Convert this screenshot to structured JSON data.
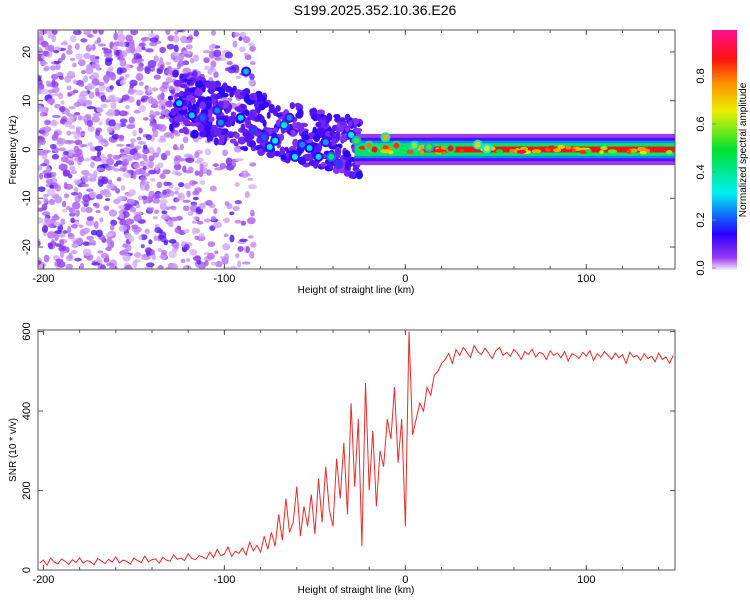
{
  "chart_data": [
    {
      "type": "heatmap",
      "title": "S199.2025.352.10.36.E26",
      "xlabel": "Height of straight line (km)",
      "ylabel": "Frequency (Hz)",
      "xlim": [
        -203,
        149
      ],
      "ylim": [
        -24.5,
        24.5
      ],
      "xticks": [
        -200,
        -100,
        0,
        100
      ],
      "yticks": [
        -20,
        -10,
        0,
        10,
        20
      ],
      "colorbar": {
        "label": "Normalized spectral amplitude",
        "range": [
          0,
          1
        ],
        "ticks": [
          "0.0",
          "0.2",
          "0.4",
          "0.6",
          "0.8"
        ],
        "stops": [
          {
            "v": 0.0,
            "c": "#f4eefc"
          },
          {
            "v": 0.05,
            "c": "#9a3cf0"
          },
          {
            "v": 0.15,
            "c": "#2a00ff"
          },
          {
            "v": 0.22,
            "c": "#1060ff"
          },
          {
            "v": 0.32,
            "c": "#00f0f0"
          },
          {
            "v": 0.5,
            "c": "#00e030"
          },
          {
            "v": 0.66,
            "c": "#e8f000"
          },
          {
            "v": 0.78,
            "c": "#ff9000"
          },
          {
            "v": 0.88,
            "c": "#ff1010"
          },
          {
            "v": 1.0,
            "c": "#ff1090"
          }
        ]
      },
      "ridge": {
        "x_start": -25,
        "x_end": 149,
        "freq": 0,
        "amplitude": 0.88
      },
      "features": [
        [
          -125,
          9.5,
          0.3
        ],
        [
          -118,
          7,
          0.3
        ],
        [
          -112,
          6.5,
          0.22
        ],
        [
          -104,
          8,
          0.25
        ],
        [
          -102,
          5.5,
          0.25
        ],
        [
          -88,
          16,
          0.28
        ],
        [
          -91,
          6.5,
          0.3
        ],
        [
          -84,
          4,
          0.2
        ],
        [
          -78,
          2.5,
          0.22
        ],
        [
          -75,
          0.5,
          0.32
        ],
        [
          -72,
          1.8,
          0.33
        ],
        [
          -67,
          5,
          0.38
        ],
        [
          -64,
          6.5,
          0.25
        ],
        [
          -61,
          -1.5,
          0.32
        ],
        [
          -57,
          1,
          0.25
        ],
        [
          -53,
          0.3,
          0.3
        ],
        [
          -48,
          -1.5,
          0.3
        ],
        [
          -44,
          1.5,
          0.26
        ],
        [
          -41,
          -1.5,
          0.45
        ],
        [
          -37,
          -3,
          0.2
        ],
        [
          -30,
          3,
          0.35
        ],
        [
          -27,
          1.8,
          0.55
        ],
        [
          -20,
          0.8,
          0.8
        ],
        [
          -17,
          0,
          0.88
        ],
        [
          -11,
          2.5,
          0.75
        ],
        [
          -5,
          0.8,
          0.85
        ],
        [
          5,
          0.8,
          0.6
        ],
        [
          13,
          0.5,
          0.55
        ],
        [
          25,
          0.2,
          0.9
        ],
        [
          40,
          1,
          0.7
        ],
        [
          45,
          0.2,
          0.65
        ]
      ]
    },
    {
      "type": "line",
      "xlabel": "Height of straight line (km)",
      "ylabel": "SNR (10 * v/v)",
      "xlim": [
        -203,
        149
      ],
      "ylim": [
        0,
        604
      ],
      "xticks": [
        -200,
        -100,
        0,
        100
      ],
      "yticks": [
        0,
        200,
        400,
        600
      ],
      "color": "#ee2a2a",
      "x_start": -202,
      "x_step": 2,
      "values": [
        18,
        25,
        12,
        30,
        20,
        15,
        28,
        22,
        14,
        26,
        19,
        31,
        17,
        24,
        21,
        13,
        29,
        23,
        16,
        27,
        20,
        33,
        18,
        25,
        22,
        15,
        30,
        24,
        19,
        35,
        21,
        26,
        28,
        17,
        32,
        25,
        22,
        38,
        27,
        30,
        24,
        41,
        29,
        26,
        36,
        33,
        28,
        45,
        31,
        52,
        36,
        40,
        58,
        34,
        47,
        42,
        55,
        38,
        70,
        48,
        62,
        45,
        85,
        52,
        95,
        60,
        140,
        75,
        180,
        95,
        120,
        210,
        85,
        160,
        110,
        190,
        90,
        230,
        120,
        260,
        150,
        110,
        280,
        180,
        320,
        140,
        420,
        210,
        380,
        60,
        470,
        200,
        350,
        160,
        300,
        260,
        380,
        330,
        460,
        270,
        380,
        110,
        600,
        340,
        380,
        420,
        400,
        460,
        440,
        490,
        500,
        520,
        530,
        545,
        520,
        555,
        540,
        560,
        548,
        535,
        565,
        550,
        542,
        558,
        546,
        532,
        552,
        560,
        540,
        548,
        538,
        555,
        545,
        530,
        550,
        542,
        556,
        536,
        548,
        544,
        530,
        552,
        540,
        546,
        534,
        550,
        526,
        544,
        540,
        532,
        548,
        538,
        552,
        528,
        544,
        536,
        550,
        540,
        530,
        546,
        534,
        542,
        520,
        548,
        536,
        540,
        528,
        544,
        532,
        538,
        524,
        546,
        530,
        536,
        520,
        540
      ]
    }
  ]
}
